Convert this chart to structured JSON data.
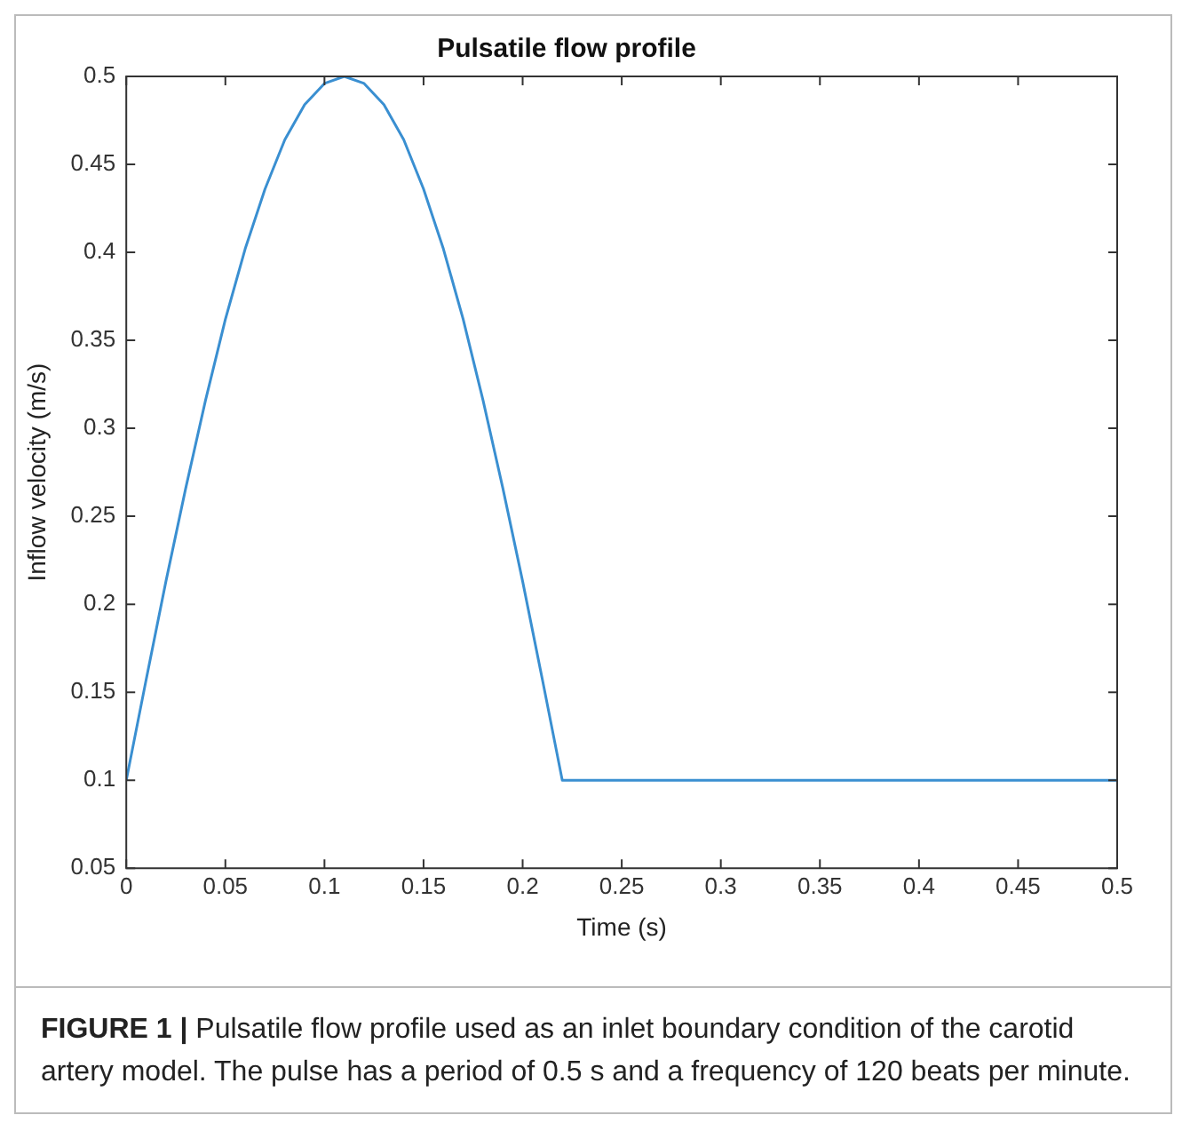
{
  "chart_data": {
    "type": "line",
    "title": "Pulsatile flow profile",
    "xlabel": "Time (s)",
    "ylabel": "Inflow velocity (m/s)",
    "annotations": [
      "FIGURE 1 | Pulsatile flow profile used as an inlet boundary condition of the carotid artery model. The pulse has a period of 0.5 s and a frequency of 120 beats per minute."
    ],
    "x": [
      0,
      0.01,
      0.02,
      0.03,
      0.04,
      0.05,
      0.06,
      0.07,
      0.08,
      0.09,
      0.1,
      0.11,
      0.12,
      0.13,
      0.14,
      0.15,
      0.16,
      0.17,
      0.18,
      0.19,
      0.2,
      0.21,
      0.22,
      0.5
    ],
    "series": [
      {
        "color": "#3a8fd1",
        "values": [
          0.1,
          0.157,
          0.213,
          0.266,
          0.316,
          0.362,
          0.402,
          0.436,
          0.464,
          0.484,
          0.496,
          0.5,
          0.496,
          0.484,
          0.464,
          0.436,
          0.402,
          0.362,
          0.316,
          0.266,
          0.213,
          0.157,
          0.1,
          0.1
        ]
      }
    ],
    "xlim": [
      0,
      0.5
    ],
    "xticks": [
      0,
      0.05,
      0.1,
      0.15,
      0.2,
      0.25,
      0.3,
      0.35,
      0.4,
      0.45,
      0.5
    ],
    "ylim": [
      0.05,
      0.5
    ],
    "yticks": [
      0.05,
      0.1,
      0.15,
      0.2,
      0.25,
      0.3,
      0.35,
      0.4,
      0.45,
      0.5
    ],
    "grid": false,
    "legend": false,
    "marker": "none",
    "line_style": "solid"
  }
}
